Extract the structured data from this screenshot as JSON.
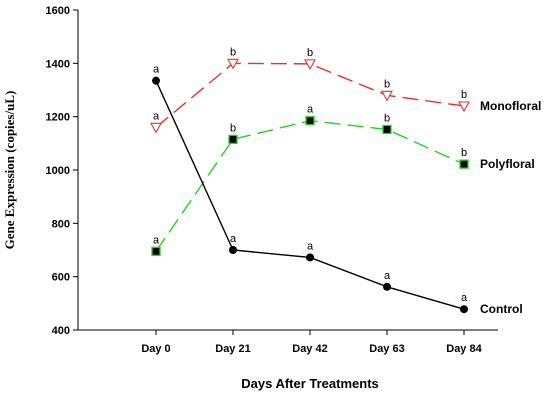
{
  "chart_data": {
    "type": "line",
    "title": "",
    "xlabel": "Days After Treatments",
    "ylabel": "Gene Expression (copies/uL)",
    "categories": [
      "Day 0",
      "Day 21",
      "Day 42",
      "Day 63",
      "Day 84"
    ],
    "ylim": [
      400,
      1600
    ],
    "yticks": [
      400,
      600,
      800,
      1000,
      1200,
      1400,
      1600
    ],
    "grid": false,
    "legend": "inline labels at line ends",
    "series": [
      {
        "name": "Monofloral",
        "values": [
          1160,
          1400,
          1398,
          1280,
          1240
        ],
        "letters": [
          "a",
          "b",
          "b",
          "b",
          "b"
        ],
        "color": "#e8322c",
        "marker": "triangle-down-open",
        "dash": "long-dash"
      },
      {
        "name": "Polyfloral",
        "values": [
          695,
          1115,
          1185,
          1152,
          1022
        ],
        "letters": [
          "a",
          "b",
          "a",
          "b",
          "b"
        ],
        "color": "#22d322",
        "marker": "square-filled",
        "dash": "long-dash"
      },
      {
        "name": "Control",
        "values": [
          1335,
          700,
          672,
          562,
          478
        ],
        "letters": [
          "a",
          "a",
          "a",
          "a",
          "a"
        ],
        "color": "#000000",
        "marker": "circle-filled",
        "dash": "solid"
      }
    ]
  }
}
